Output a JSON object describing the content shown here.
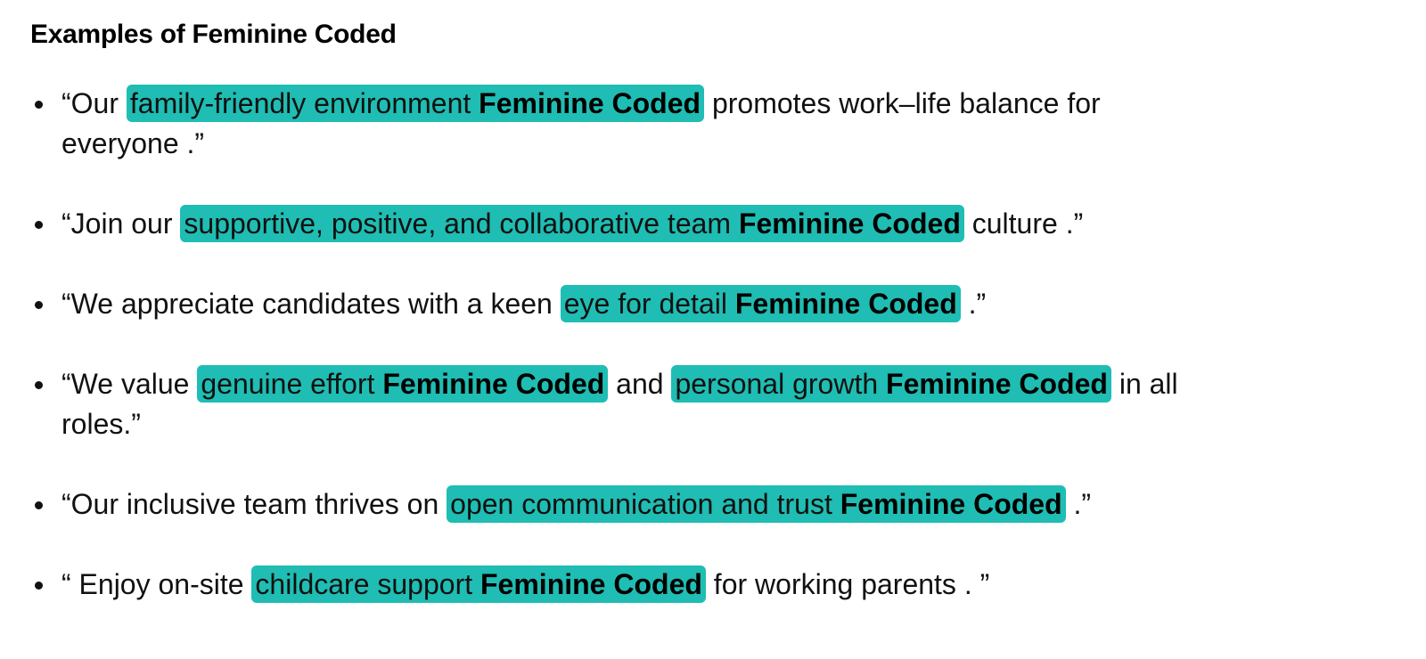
{
  "heading": "Examples of Feminine Coded",
  "highlight_color": "#1fbdb3",
  "examples": [
    {
      "pre": "“Our ",
      "highlights": [
        {
          "phrase": "family-friendly environment ",
          "tag": "Feminine Coded"
        }
      ],
      "post": " promotes work–life balance for everyone .”"
    },
    {
      "pre": "“Join our ",
      "highlights": [
        {
          "phrase": "supportive, positive, and collaborative team ",
          "tag": "Feminine Coded"
        }
      ],
      "post": " culture .”"
    },
    {
      "pre": "“We appreciate candidates with a keen ",
      "highlights": [
        {
          "phrase": "eye for detail ",
          "tag": "Feminine Coded"
        }
      ],
      "post": " .”"
    },
    {
      "pre": "“We value ",
      "highlights": [
        {
          "phrase": "genuine effort ",
          "tag": "Feminine Coded"
        },
        {
          "phrase": "personal growth ",
          "tag": "Feminine Coded"
        }
      ],
      "middle": " and ",
      "post": " in all roles.”"
    },
    {
      "pre": "“Our inclusive team thrives on ",
      "highlights": [
        {
          "phrase": "open communication and trust ",
          "tag": "Feminine Coded"
        }
      ],
      "post": " .”"
    },
    {
      "pre": "“ Enjoy on-site ",
      "highlights": [
        {
          "phrase": "childcare support ",
          "tag": "Feminine Coded"
        }
      ],
      "post": " for working parents . ”"
    }
  ]
}
